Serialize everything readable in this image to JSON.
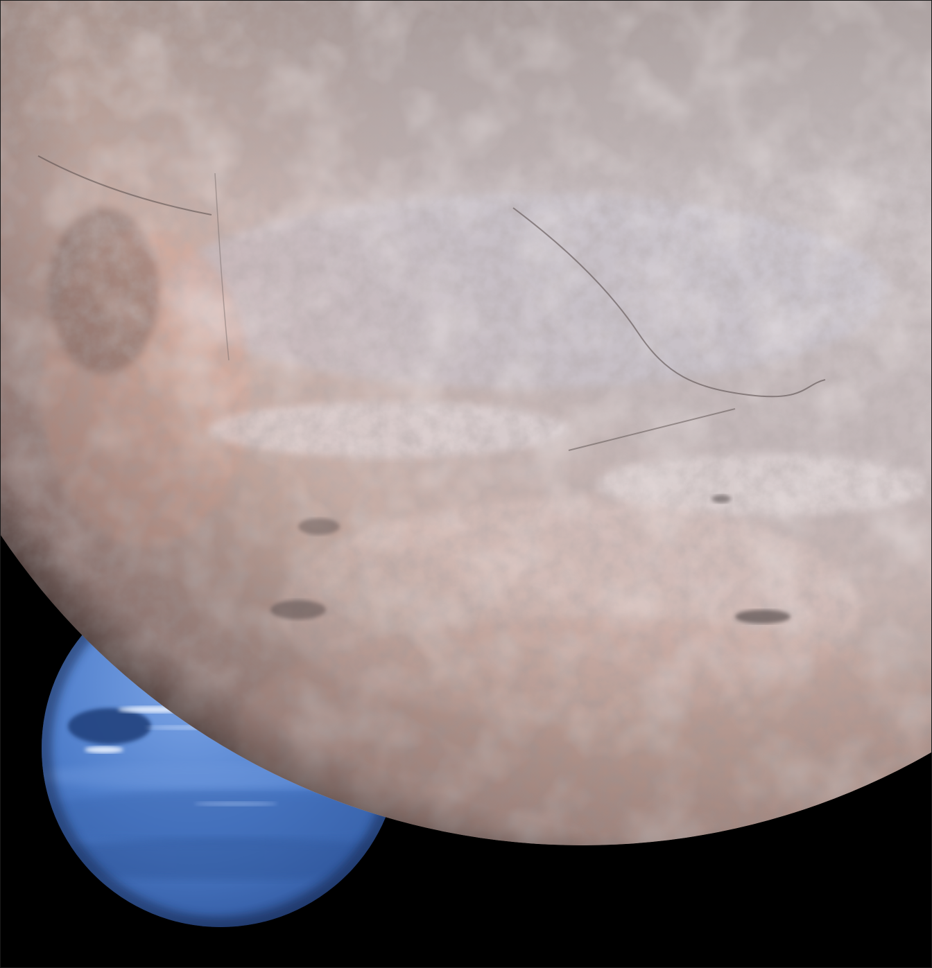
{
  "scene": {
    "subjects": [
      "triton-moon",
      "neptune-planet"
    ],
    "colors": {
      "space": "#000000",
      "triton_light": "#ddd3d0",
      "triton_mid": "#b8a8a6",
      "triton_pink": "#cfa594",
      "triton_dark": "#6e6260",
      "neptune_light": "#6f9be0",
      "neptune_mid": "#4a78c4",
      "neptune_dark": "#2b4f92",
      "neptune_cloud": "#e8f0ff"
    }
  }
}
